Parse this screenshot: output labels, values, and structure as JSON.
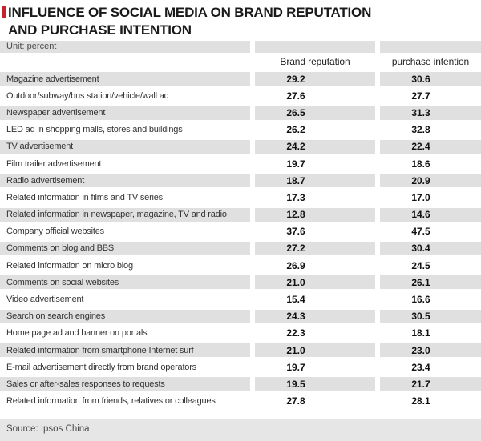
{
  "title": {
    "line1": "INFLUENCE OF SOCIAL MEDIA ON BRAND REPUTATION",
    "line2": "AND PURCHASE INTENTION"
  },
  "unit_label": "Unit: percent",
  "columns": {
    "brand": "Brand reputation",
    "purchase": "purchase intention"
  },
  "rows": [
    {
      "label": "Magazine advertisement",
      "brand": "29.2",
      "purchase": "30.6"
    },
    {
      "label": "Outdoor/subway/bus station/vehicle/wall ad",
      "brand": "27.6",
      "purchase": "27.7"
    },
    {
      "label": "Newspaper advertisement",
      "brand": "26.5",
      "purchase": "31.3"
    },
    {
      "label": "LED ad in shopping malls, stores and buildings",
      "brand": "26.2",
      "purchase": "32.8"
    },
    {
      "label": "TV advertisement",
      "brand": "24.2",
      "purchase": "22.4"
    },
    {
      "label": "Film trailer advertisement",
      "brand": "19.7",
      "purchase": "18.6"
    },
    {
      "label": "Radio advertisement",
      "brand": "18.7",
      "purchase": "20.9"
    },
    {
      "label": "Related information in films and TV series",
      "brand": "17.3",
      "purchase": "17.0"
    },
    {
      "label": "Related information in newspaper, magazine, TV and radio",
      "brand": "12.8",
      "purchase": "14.6"
    },
    {
      "label": "Company official websites",
      "brand": "37.6",
      "purchase": "47.5"
    },
    {
      "label": "Comments on blog and BBS",
      "brand": "27.2",
      "purchase": "30.4"
    },
    {
      "label": "Related information on micro blog",
      "brand": "26.9",
      "purchase": "24.5"
    },
    {
      "label": "Comments on social websites",
      "brand": "21.0",
      "purchase": "26.1"
    },
    {
      "label": "Video advertisement",
      "brand": "15.4",
      "purchase": "16.6"
    },
    {
      "label": "Search on search engines",
      "brand": "24.3",
      "purchase": "30.5"
    },
    {
      "label": "Home page ad and banner on portals",
      "brand": "22.3",
      "purchase": "18.1"
    },
    {
      "label": "Related information from smartphone Internet surf",
      "brand": "21.0",
      "purchase": "23.0"
    },
    {
      "label": "E-mail advertisement directly from brand operators",
      "brand": "19.7",
      "purchase": "23.4"
    },
    {
      "label": "Sales or after-sales responses to requests",
      "brand": "19.5",
      "purchase": "21.7"
    },
    {
      "label": "Related information from friends, relatives or colleagues",
      "brand": "27.8",
      "purchase": "28.1"
    }
  ],
  "source": "Source: Ipsos China",
  "colors": {
    "accent_red": "#c8232c",
    "stripe_gray": "#e0e0e0",
    "source_gray": "#e6e6e6"
  },
  "chart_data": {
    "type": "table",
    "title": "INFLUENCE OF SOCIAL MEDIA ON BRAND REPUTATION AND PURCHASE INTENTION",
    "unit": "percent",
    "categories": [
      "Magazine advertisement",
      "Outdoor/subway/bus station/vehicle/wall ad",
      "Newspaper advertisement",
      "LED ad in shopping malls, stores and buildings",
      "TV advertisement",
      "Film trailer advertisement",
      "Radio advertisement",
      "Related information in films and TV series",
      "Related information in newspaper, magazine, TV and radio",
      "Company official websites",
      "Comments on blog and BBS",
      "Related information on micro blog",
      "Comments on social websites",
      "Video advertisement",
      "Search on search engines",
      "Home page ad and banner on portals",
      "Related information from smartphone Internet surf",
      "E-mail advertisement directly from brand operators",
      "Sales or after-sales responses to requests",
      "Related information from friends, relatives or colleagues"
    ],
    "series": [
      {
        "name": "Brand reputation",
        "values": [
          29.2,
          27.6,
          26.5,
          26.2,
          24.2,
          19.7,
          18.7,
          17.3,
          12.8,
          37.6,
          27.2,
          26.9,
          21.0,
          15.4,
          24.3,
          22.3,
          21.0,
          19.7,
          19.5,
          27.8
        ]
      },
      {
        "name": "purchase intention",
        "values": [
          30.6,
          27.7,
          31.3,
          32.8,
          22.4,
          18.6,
          20.9,
          17.0,
          14.6,
          47.5,
          30.4,
          24.5,
          26.1,
          16.6,
          30.5,
          18.1,
          23.0,
          23.4,
          21.7,
          28.1
        ]
      }
    ],
    "source": "Ipsos China"
  }
}
